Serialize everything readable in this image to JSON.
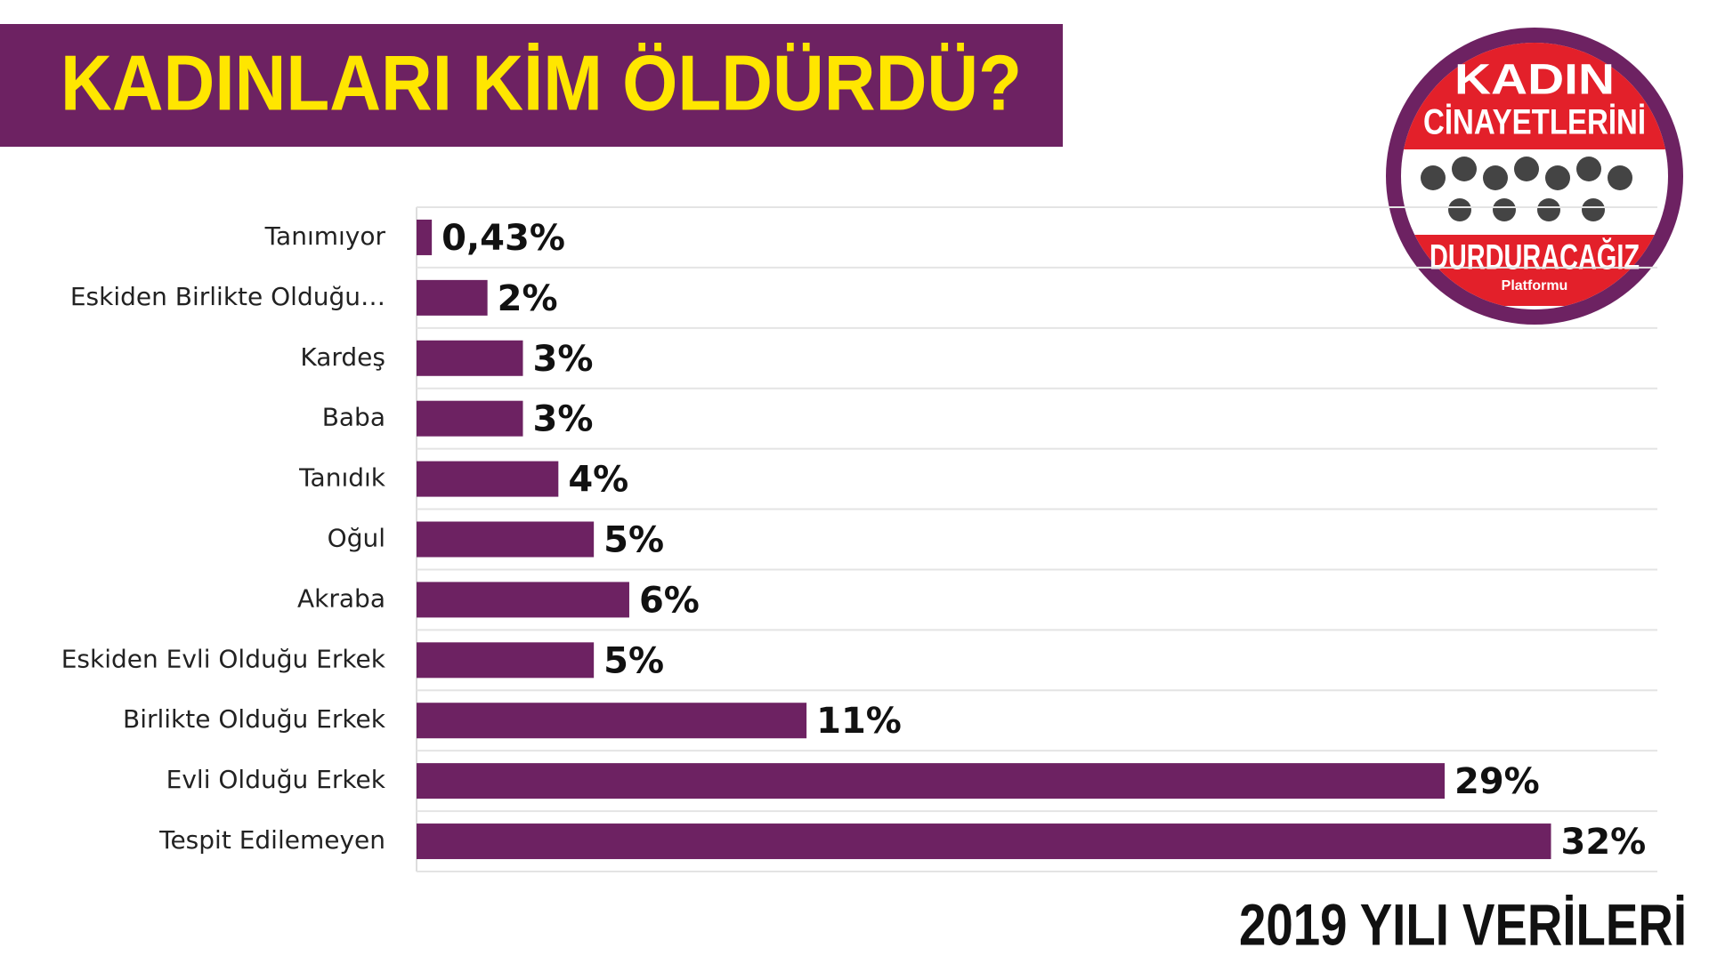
{
  "chart_data": {
    "type": "hbar",
    "title": "KADINLARI KİM ÖLDÜRDÜ?",
    "subtitle": "2019 YILI VERİLERİ",
    "categories": [
      "Tanımıyor",
      "Eskiden Birlikte Olduğu…",
      "Kardeş",
      "Baba",
      "Tanıdık",
      "Oğul",
      "Akraba",
      "Eskiden Evli Olduğu Erkek",
      "Birlikte Olduğu Erkek",
      "Evli Olduğu Erkek",
      "Tespit Edilemeyen"
    ],
    "values": [
      0.43,
      2,
      3,
      3,
      4,
      5,
      6,
      5,
      11,
      29,
      32
    ],
    "value_labels": [
      "0,43%",
      "2%",
      "3%",
      "3%",
      "4%",
      "5%",
      "6%",
      "5%",
      "11%",
      "29%",
      "32%"
    ],
    "color": "#6d2262",
    "xlim": [
      0,
      35
    ]
  },
  "logo": {
    "lines": [
      "KADIN",
      "CİNAYETLERİNİ",
      "DURDURACAĞIZ"
    ],
    "small": "Platformu"
  }
}
